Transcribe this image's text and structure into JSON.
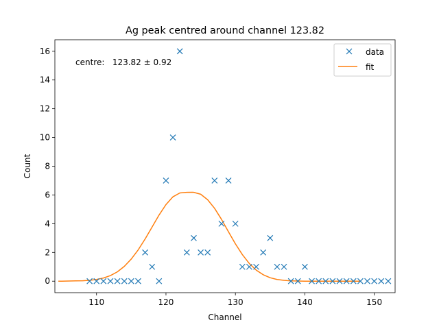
{
  "chart_data": {
    "type": "scatter",
    "title": "Ag peak centred around channel 123.82",
    "xlabel": "Channel",
    "ylabel": "Count",
    "xlim": [
      104,
      153
    ],
    "ylim": [
      -0.8,
      16.8
    ],
    "xticks": [
      110,
      120,
      130,
      140,
      150
    ],
    "yticks": [
      0,
      2,
      4,
      6,
      8,
      10,
      12,
      14,
      16
    ],
    "grid": false,
    "legend_position": "top-right",
    "annotation": "centre:   123.82 ± 0.92",
    "series": [
      {
        "name": "data",
        "kind": "markers",
        "marker": "x",
        "color": "#1f77b4",
        "x": [
          109,
          110,
          111,
          112,
          113,
          114,
          115,
          116,
          117,
          118,
          119,
          120,
          121,
          122,
          123,
          124,
          125,
          126,
          127,
          128,
          129,
          130,
          131,
          132,
          133,
          134,
          135,
          136,
          137,
          138,
          139,
          140,
          141,
          142,
          143,
          144,
          145,
          146,
          147,
          148,
          149,
          150,
          151,
          152
        ],
        "y": [
          0,
          0,
          0,
          0,
          0,
          0,
          0,
          0,
          2,
          1,
          0,
          7,
          10,
          16,
          2,
          3,
          2,
          2,
          7,
          4,
          7,
          4,
          1,
          1,
          1,
          2,
          3,
          1,
          1,
          0,
          0,
          1,
          0,
          0,
          0,
          0,
          0,
          0,
          0,
          0,
          0,
          0,
          0,
          0
        ]
      },
      {
        "name": "fit",
        "kind": "line",
        "color": "#ff7f0e",
        "x": [
          104.5,
          105,
          106,
          107,
          108,
          109,
          110,
          111,
          112,
          113,
          114,
          115,
          116,
          117,
          118,
          119,
          120,
          121,
          122,
          123,
          123.82,
          124,
          125,
          126,
          127,
          128,
          129,
          130,
          131,
          132,
          133,
          134,
          135,
          136,
          137,
          138,
          139,
          140,
          141,
          142,
          143,
          144,
          145,
          146,
          147,
          148
        ],
        "y": [
          0.0,
          0.0,
          0.01,
          0.02,
          0.03,
          0.06,
          0.12,
          0.22,
          0.39,
          0.65,
          1.03,
          1.54,
          2.18,
          2.94,
          3.77,
          4.6,
          5.33,
          5.87,
          6.14,
          6.18,
          6.19,
          6.18,
          6.05,
          5.67,
          5.07,
          4.3,
          3.44,
          2.6,
          1.85,
          1.23,
          0.77,
          0.45,
          0.24,
          0.12,
          0.06,
          0.02,
          0.01,
          0.0,
          0.0,
          0.0,
          0.0,
          0.0,
          0.0,
          0.0,
          0.0,
          0.0
        ]
      }
    ]
  }
}
